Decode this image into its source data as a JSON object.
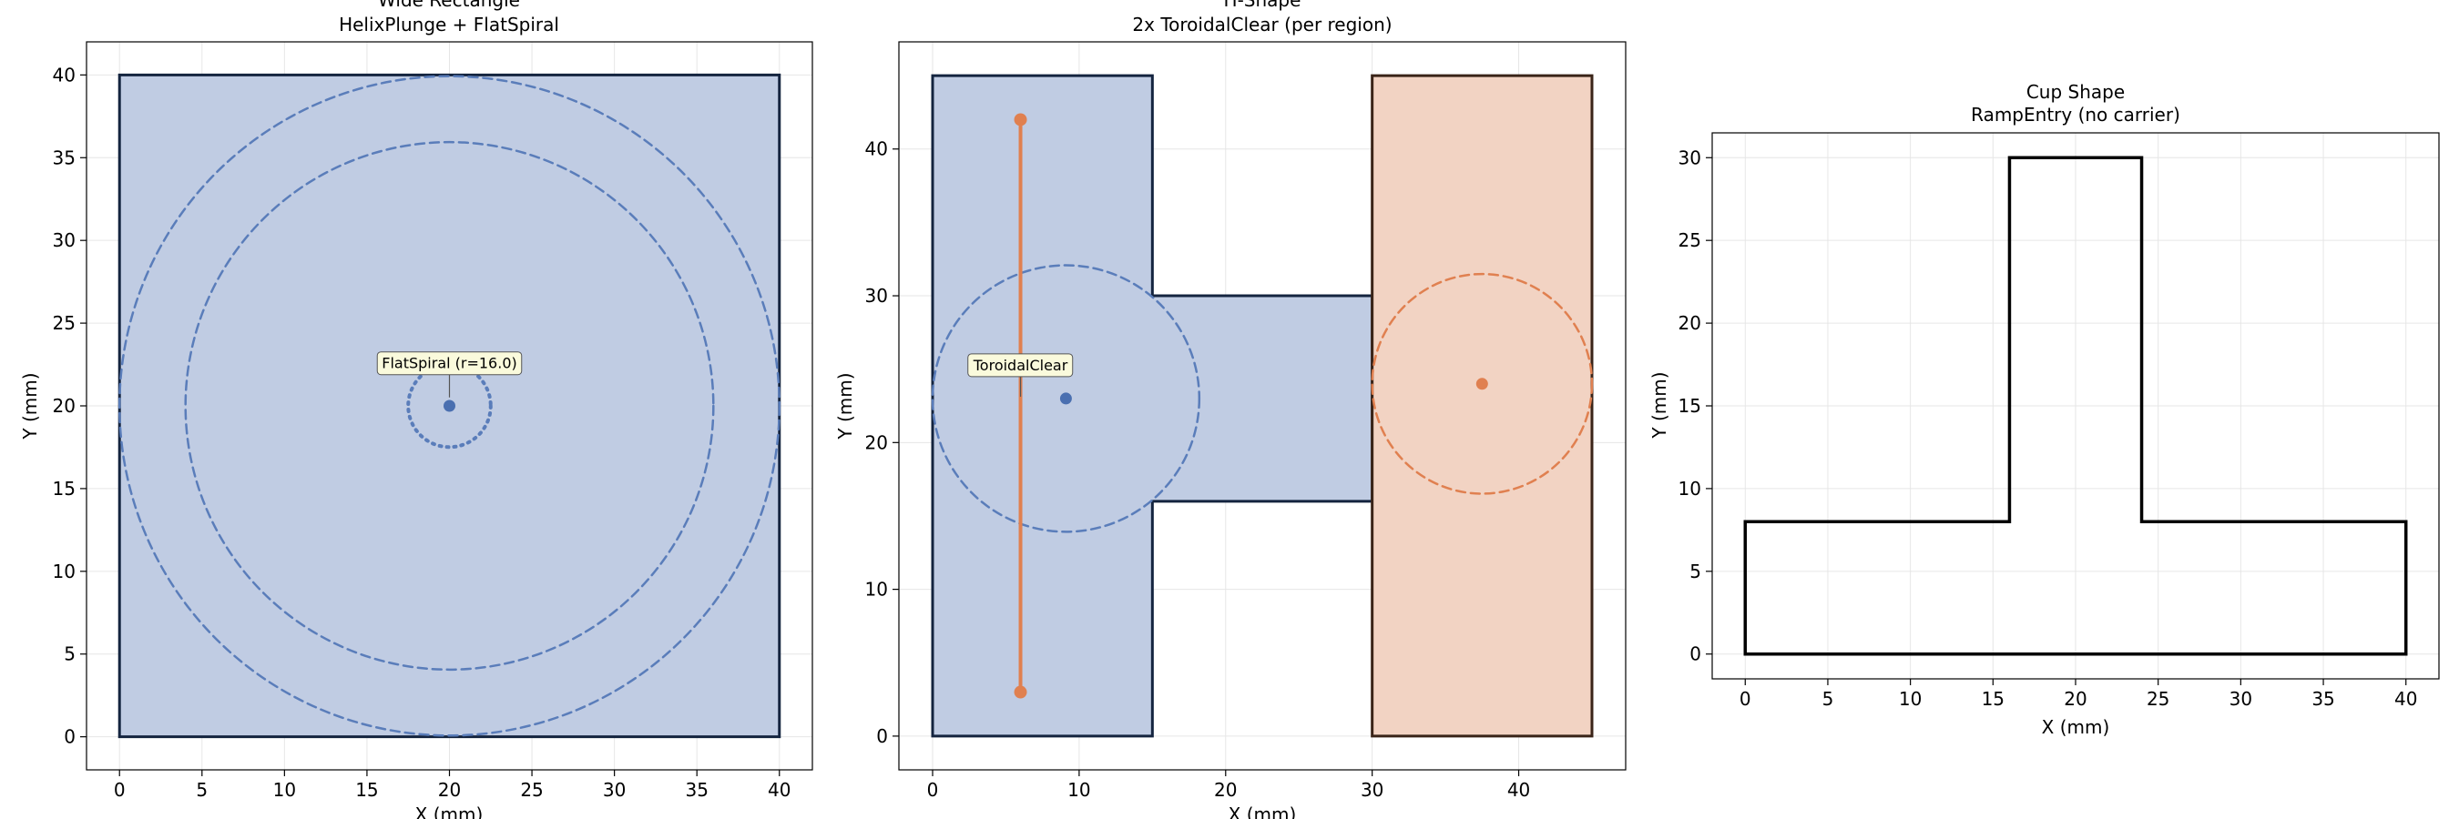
{
  "colors": {
    "blue_fill": "#c0cce3",
    "blue_line": "#5a7dba",
    "blue_point": "#4a6fb0",
    "orange_fill": "#f2d3c3",
    "orange_line": "#e08050",
    "outline_dark": "#14243f",
    "outline_brown": "#3a2418",
    "grid": "#e6e6e6",
    "annotation_bg": "#fafadc"
  },
  "chart_data": [
    {
      "type": "scatter",
      "title_line1": "Wide Rectangle",
      "title_line2": "HelixPlunge + FlatSpiral",
      "xlabel": "X (mm)",
      "ylabel": "Y (mm)",
      "xlim": [
        -2,
        42
      ],
      "ylim": [
        -2,
        42
      ],
      "xticks": [
        0,
        5,
        10,
        15,
        20,
        25,
        30,
        35,
        40
      ],
      "yticks": [
        0,
        5,
        10,
        15,
        20,
        25,
        30,
        35,
        40
      ],
      "grid": true,
      "region": [
        [
          0,
          0
        ],
        [
          40,
          0
        ],
        [
          40,
          40
        ],
        [
          0,
          40
        ]
      ],
      "circles": [
        {
          "cx": 20,
          "cy": 20,
          "r": 20,
          "style": "dashed"
        },
        {
          "cx": 20,
          "cy": 20,
          "r": 16,
          "style": "dashed"
        },
        {
          "cx": 20,
          "cy": 20,
          "r": 2.5,
          "style": "dotted"
        }
      ],
      "points": [
        {
          "x": 20,
          "y": 20
        }
      ],
      "annotation": {
        "text": "FlatSpiral (r=16.0)",
        "x": 20,
        "y": 22.6,
        "arrow_to": {
          "x": 20,
          "y": 20.4
        }
      }
    },
    {
      "type": "scatter",
      "title_line1": "H-Shape",
      "title_line2": "2x ToroidalClear (per region)",
      "xlabel": "X (mm)",
      "ylabel": "Y (mm)",
      "xlim": [
        -2.3,
        47.3
      ],
      "ylim": [
        -2.3,
        47.3
      ],
      "xticks": [
        0,
        10,
        20,
        30,
        40
      ],
      "yticks": [
        0,
        10,
        20,
        30,
        40
      ],
      "grid": true,
      "regions": [
        {
          "poly": [
            [
              0,
              0
            ],
            [
              15,
              0
            ],
            [
              15,
              16
            ],
            [
              30,
              16
            ],
            [
              30,
              30
            ],
            [
              15,
              30
            ],
            [
              15,
              45
            ],
            [
              0,
              45
            ]
          ],
          "color": "blue"
        },
        {
          "poly": [
            [
              30,
              0
            ],
            [
              45,
              0
            ],
            [
              45,
              45
            ],
            [
              30,
              45
            ]
          ],
          "color": "orange"
        }
      ],
      "circles": [
        {
          "cx": 9.1,
          "cy": 23,
          "r": 9.1,
          "style": "dashed",
          "color": "blue"
        },
        {
          "cx": 37.5,
          "cy": 24,
          "r": 7.5,
          "style": "dashed",
          "color": "orange"
        }
      ],
      "points": [
        {
          "x": 9.1,
          "y": 23,
          "color": "blue"
        },
        {
          "x": 37.5,
          "y": 24,
          "color": "orange"
        }
      ],
      "segment": {
        "x1": 6,
        "y1": 3,
        "x2": 6,
        "y2": 42,
        "color": "orange"
      },
      "annotation": {
        "text": "ToroidalClear",
        "x": 6,
        "y": 25.3,
        "arrow_to": {
          "x": 6,
          "y": 23
        }
      }
    },
    {
      "type": "scatter",
      "title_line1": "Cup Shape",
      "title_line2": "RampEntry (no carrier)",
      "xlabel": "X (mm)",
      "ylabel": "Y (mm)",
      "xlim": [
        -2,
        42
      ],
      "ylim": [
        -1.5,
        31.5
      ],
      "xticks": [
        0,
        5,
        10,
        15,
        20,
        25,
        30,
        35,
        40
      ],
      "yticks": [
        0,
        5,
        10,
        15,
        20,
        25,
        30
      ],
      "grid": true,
      "outline": [
        [
          0,
          0
        ],
        [
          40,
          0
        ],
        [
          40,
          8
        ],
        [
          24,
          8
        ],
        [
          24,
          30
        ],
        [
          16,
          30
        ],
        [
          16,
          8
        ],
        [
          0,
          8
        ]
      ]
    }
  ]
}
